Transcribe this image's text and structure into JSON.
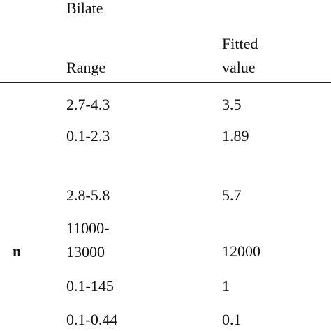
{
  "table": {
    "group": "Bilate",
    "columns": [
      "Range",
      "Fitted value"
    ],
    "rows": [
      {
        "cells": [
          "2.7-4.3",
          "3.5"
        ]
      },
      {
        "cells": [
          "0.1-2.3",
          "1.89"
        ]
      },
      {
        "cells": [
          "2.8-5.8",
          "5.7"
        ]
      },
      {
        "label": "n",
        "cells": [
          "11000-13000",
          "12000"
        ]
      },
      {
        "cells": [
          "0.1-145",
          "1"
        ]
      },
      {
        "cells": [
          "0.1-0.44",
          "0.1"
        ]
      }
    ]
  }
}
